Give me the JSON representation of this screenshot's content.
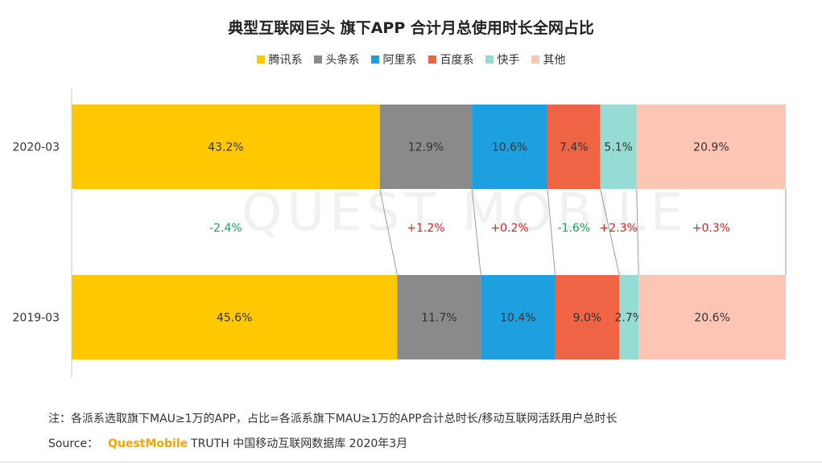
{
  "chart_data": {
    "type": "bar",
    "orientation": "horizontal",
    "stacked": true,
    "percent_stacked": true,
    "title": "典型互联网巨头 旗下APP 合计月总使用时长全网占比",
    "categories": [
      "2020-03",
      "2019-03"
    ],
    "series": [
      {
        "name": "腾讯系",
        "color": "#FFC800",
        "values": [
          43.2,
          45.6
        ],
        "labels": [
          "43.2%",
          "45.6%"
        ],
        "change": "-2.4%",
        "change_color": "#1aa260"
      },
      {
        "name": "头条系",
        "color": "#8A8A8A",
        "values": [
          12.9,
          11.7
        ],
        "labels": [
          "12.9%",
          "11.7%"
        ],
        "change": "+1.2%",
        "change_color": "#e02020"
      },
      {
        "name": "阿里系",
        "color": "#1E9FE0",
        "values": [
          10.6,
          10.4
        ],
        "labels": [
          "10.6%",
          "10.4%"
        ],
        "change": "+0.2%",
        "change_color": "#e02020"
      },
      {
        "name": "百度系",
        "color": "#EE6445",
        "values": [
          7.4,
          9.0
        ],
        "labels": [
          "7.4%",
          "9.0%"
        ],
        "change": "-1.6%",
        "change_color": "#1aa260"
      },
      {
        "name": "快手",
        "color": "#96DCD4",
        "values": [
          5.1,
          2.7
        ],
        "labels": [
          "5.1%",
          "2.7%"
        ],
        "change": "+2.3%",
        "change_color": "#e02020"
      },
      {
        "name": "其他",
        "color": "#FDC5B3",
        "values": [
          20.9,
          20.6
        ],
        "labels": [
          "20.9%",
          "20.6%"
        ],
        "change": "+0.3%",
        "change_color": "#e02020"
      }
    ],
    "legend_position": "top",
    "grid": false
  },
  "note": "注：各派系选取旗下MAU≥1万的APP，占比=各派系旗下MAU≥1万的APP合计总时长/移动互联网活跃用户总时长",
  "source": {
    "label": "Source：",
    "brand": "QuestMobile",
    "text": "TRUTH 中国移动互联网数据库 2020年3月"
  }
}
